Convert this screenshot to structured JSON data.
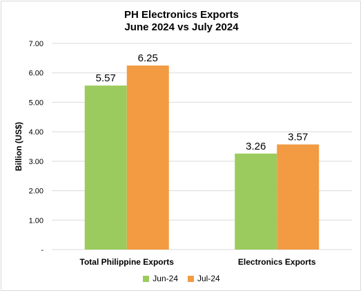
{
  "chart_data": {
    "type": "bar",
    "title": "PH Electronics Exports",
    "subtitle": "June 2024 vs July 2024",
    "ylabel": "Billion (US$)",
    "xlabel": "",
    "categories": [
      "Total Philippine Exports",
      "Electronics Exports"
    ],
    "series": [
      {
        "name": "Jun-24",
        "values": [
          5.57,
          3.26
        ],
        "color": "#9bcb5e"
      },
      {
        "name": "Jul-24",
        "values": [
          6.25,
          3.57
        ],
        "color": "#f29b43"
      }
    ],
    "ylim": [
      0,
      7
    ],
    "yticks": [
      0,
      1,
      2,
      3,
      4,
      5,
      6,
      7
    ],
    "ytick_labels": [
      "-",
      "1.00",
      "2.00",
      "3.00",
      "4.00",
      "5.00",
      "6.00",
      "7.00"
    ],
    "data_labels": [
      [
        "5.57",
        "3.26"
      ],
      [
        "6.25",
        "3.57"
      ]
    ],
    "grid": true,
    "legend_position": "bottom"
  }
}
